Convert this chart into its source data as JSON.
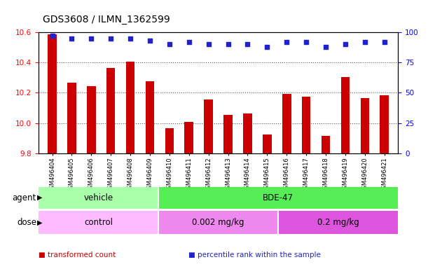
{
  "title": "GDS3608 / ILMN_1362599",
  "samples": [
    "GSM496404",
    "GSM496405",
    "GSM496406",
    "GSM496407",
    "GSM496408",
    "GSM496409",
    "GSM496410",
    "GSM496411",
    "GSM496412",
    "GSM496413",
    "GSM496414",
    "GSM496415",
    "GSM496416",
    "GSM496417",
    "GSM496418",
    "GSM496419",
    "GSM496420",
    "GSM496421"
  ],
  "transformed_counts": [
    10.585,
    10.265,
    10.245,
    10.365,
    10.405,
    10.275,
    9.965,
    10.01,
    10.155,
    10.055,
    10.065,
    9.925,
    10.195,
    10.175,
    9.915,
    10.305,
    10.165,
    10.185
  ],
  "percentile_ranks": [
    97,
    95,
    95,
    95,
    95,
    93,
    90,
    92,
    90,
    90,
    90,
    88,
    92,
    92,
    88,
    90,
    92,
    92
  ],
  "ylim_left": [
    9.8,
    10.6
  ],
  "ylim_right": [
    0,
    100
  ],
  "yticks_left": [
    9.8,
    10.0,
    10.2,
    10.4,
    10.6
  ],
  "yticks_right": [
    0,
    25,
    50,
    75,
    100
  ],
  "bar_color": "#cc0000",
  "dot_color": "#2222cc",
  "grid_color": "#555555",
  "agent_groups": [
    {
      "label": "vehicle",
      "start": 0,
      "end": 6,
      "color": "#aaffaa"
    },
    {
      "label": "BDE-47",
      "start": 6,
      "end": 18,
      "color": "#55ee55"
    }
  ],
  "dose_groups": [
    {
      "label": "control",
      "start": 0,
      "end": 6,
      "color": "#ffbbff"
    },
    {
      "label": "0.002 mg/kg",
      "start": 6,
      "end": 12,
      "color": "#ee88ee"
    },
    {
      "label": "0.2 mg/kg",
      "start": 12,
      "end": 18,
      "color": "#dd55dd"
    }
  ],
  "legend_items": [
    {
      "label": "transformed count",
      "color": "#cc0000"
    },
    {
      "label": "percentile rank within the sample",
      "color": "#2222cc"
    }
  ],
  "title_fontsize": 10,
  "tick_fontsize": 7.5,
  "label_fontsize": 8.5,
  "xtick_fontsize": 6.0,
  "bar_width": 0.45,
  "ybase": 9.8
}
